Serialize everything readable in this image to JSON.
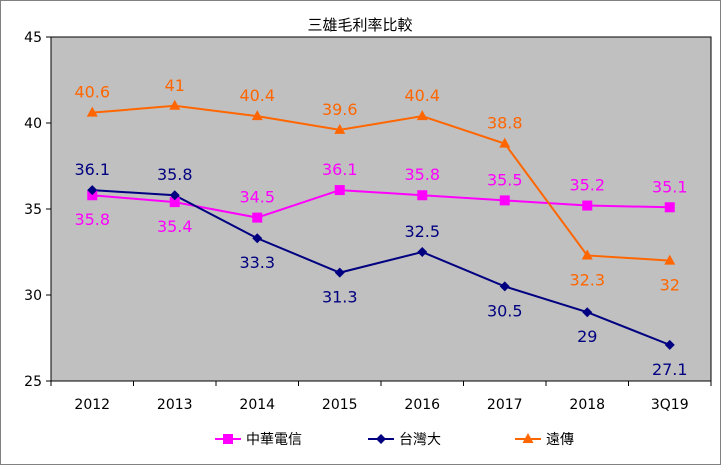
{
  "chart_data": {
    "type": "line",
    "title": "三雄毛利率比較",
    "xlabel": "",
    "ylabel": "",
    "categories": [
      "2012",
      "2013",
      "2014",
      "2015",
      "2016",
      "2017",
      "2018",
      "3Q19"
    ],
    "ylim": [
      25,
      45
    ],
    "yticks": [
      "25",
      "30",
      "35",
      "40",
      "45"
    ],
    "grid": false,
    "legend_position": "bottom",
    "plot_background": "#C0C0C0",
    "series": [
      {
        "name": "中華電信",
        "color": "#FF00FF",
        "marker": "square",
        "values": [
          35.8,
          35.4,
          34.5,
          36.1,
          35.8,
          35.5,
          35.2,
          35.1
        ],
        "labels": [
          "35.8",
          "35.4",
          "34.5",
          "36.1",
          "35.8",
          "35.5",
          "35.2",
          "35.1"
        ]
      },
      {
        "name": "台灣大",
        "color": "#000080",
        "marker": "diamond",
        "values": [
          36.1,
          35.8,
          33.3,
          31.3,
          32.5,
          30.5,
          29.0,
          27.1
        ],
        "labels": [
          "36.1",
          "35.8",
          "33.3",
          "31.3",
          "32.5",
          "30.5",
          "29",
          "27.1"
        ]
      },
      {
        "name": "遠傳",
        "color": "#FF6600",
        "marker": "triangle",
        "values": [
          40.6,
          41.0,
          40.4,
          39.6,
          40.4,
          38.8,
          32.3,
          32.0
        ],
        "labels": [
          "40.6",
          "41",
          "40.4",
          "39.6",
          "40.4",
          "38.8",
          "32.3",
          "32"
        ]
      }
    ]
  }
}
